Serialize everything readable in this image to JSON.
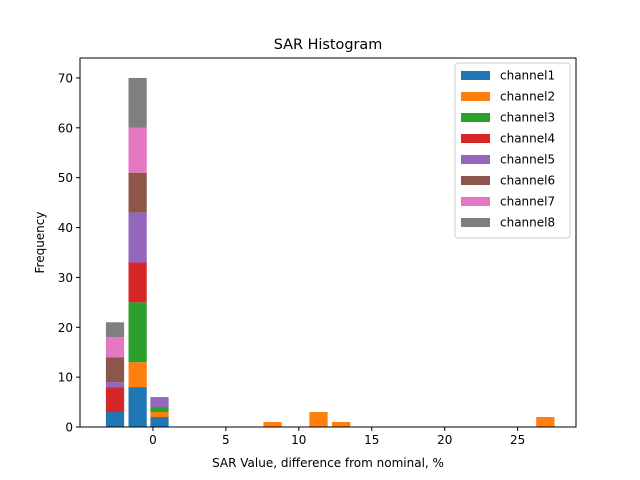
{
  "chart_data": {
    "type": "bar",
    "stacked": true,
    "title": "SAR Histogram",
    "xlabel": "SAR Value, difference from nominal, %",
    "ylabel": "Frequency",
    "xlim": [
      -5.0,
      29.0
    ],
    "ylim": [
      0,
      74
    ],
    "xticks": [
      0,
      5,
      10,
      15,
      20,
      25
    ],
    "yticks": [
      0,
      10,
      20,
      30,
      40,
      50,
      60,
      70
    ],
    "bin_width": 1.25,
    "bins": [
      -2.6,
      -1.05,
      0.45,
      8.2,
      11.35,
      12.9,
      26.9
    ],
    "legend_position": "upper right",
    "series": [
      {
        "name": "channel1",
        "color": "#1f77b4",
        "values": [
          3,
          8,
          2,
          0,
          0,
          0,
          0
        ]
      },
      {
        "name": "channel2",
        "color": "#ff7f0e",
        "values": [
          0,
          5,
          1,
          1,
          3,
          1,
          2
        ]
      },
      {
        "name": "channel3",
        "color": "#2ca02c",
        "values": [
          0,
          12,
          1,
          0,
          0,
          0,
          0
        ]
      },
      {
        "name": "channel4",
        "color": "#d62728",
        "values": [
          5,
          8,
          0,
          0,
          0,
          0,
          0
        ]
      },
      {
        "name": "channel5",
        "color": "#9467bd",
        "values": [
          1,
          10,
          2,
          0,
          0,
          0,
          0
        ]
      },
      {
        "name": "channel6",
        "color": "#8c564b",
        "values": [
          5,
          8,
          0,
          0,
          0,
          0,
          0
        ]
      },
      {
        "name": "channel7",
        "color": "#e377c2",
        "values": [
          4,
          9,
          0,
          0,
          0,
          0,
          0
        ]
      },
      {
        "name": "channel8",
        "color": "#7f7f7f",
        "values": [
          3,
          10,
          0,
          0,
          0,
          0,
          0
        ]
      }
    ]
  }
}
